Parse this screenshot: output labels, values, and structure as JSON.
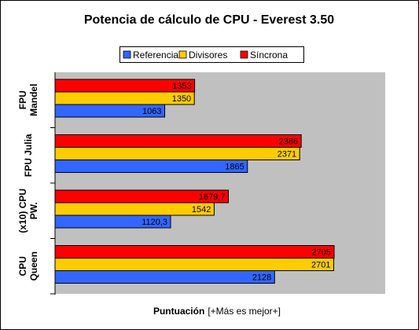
{
  "chart_data": {
    "type": "bar",
    "orientation": "horizontal",
    "title": "Potencia de cálculo de CPU - Everest 3.50",
    "xlabel_bold": "Puntuación",
    "xlabel_rest": "[+Más es mejor+]",
    "ylabel": "",
    "categories": [
      [
        "FPU",
        "Mandel"
      ],
      [
        "FPU Julia"
      ],
      [
        "(x10) CPU",
        "PW."
      ],
      [
        "CPU",
        "Queen"
      ]
    ],
    "series": [
      {
        "name": "Referencia",
        "color": "#3366ff",
        "values": [
          1063,
          1865,
          1120.3,
          2128
        ],
        "labels": [
          "1063",
          "1865",
          "1120,3",
          "2128"
        ]
      },
      {
        "name": "Divisores",
        "color": "#ffcc00",
        "values": [
          1350,
          2371,
          1542,
          2701
        ],
        "labels": [
          "1350",
          "2371",
          "1542",
          "2701"
        ]
      },
      {
        "name": "Síncrona",
        "color": "#ff0000",
        "values": [
          1353,
          2386,
          1679.7,
          2705
        ],
        "labels": [
          "1353",
          "2386",
          "1679,7",
          "2705"
        ]
      }
    ],
    "legend": {
      "position": "top",
      "order": [
        "Referencia",
        "Divisores",
        "Síncrona"
      ]
    },
    "xlim": [
      0,
      3200
    ],
    "grid": false,
    "plot_background": "#c0c0c0"
  }
}
